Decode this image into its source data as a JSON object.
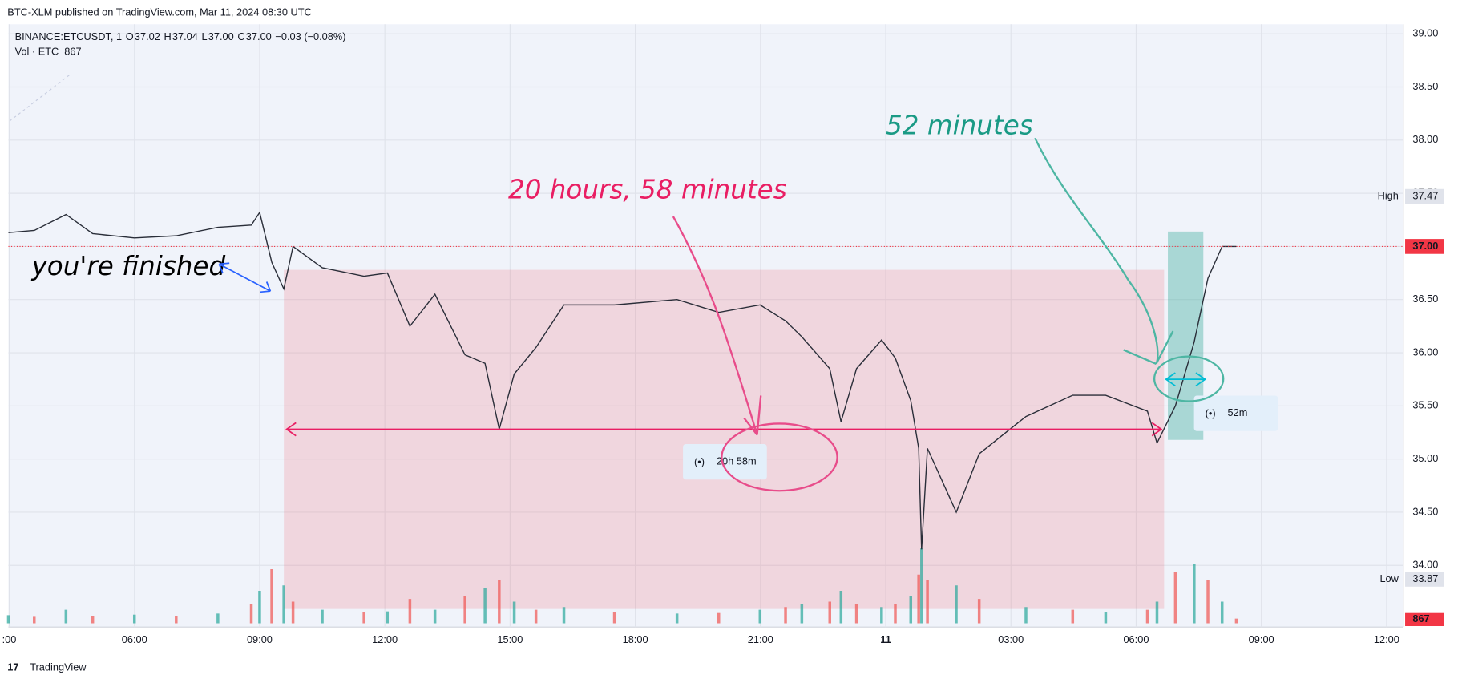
{
  "header": "BTC-XLM published on TradingView.com, Mar 11, 2024 08:30 UTC",
  "footer": "TradingView",
  "chart_data": {
    "type": "line",
    "legend": {
      "symbol": "BINANCE:ETCUSDT, 1",
      "items": [
        {
          "key": "O",
          "value": "37.02"
        },
        {
          "key": "H",
          "value": "37.04"
        },
        {
          "key": "L",
          "value": "37.00"
        },
        {
          "key": "C",
          "value": "37.00"
        }
      ],
      "change": "−0.03 (−0.08%)",
      "volume_label": "Vol · ETC",
      "volume_value": "867"
    },
    "x": [
      2.98,
      3.6,
      4.36,
      5.0,
      6.0,
      7.0,
      8.0,
      8.8,
      9.0,
      9.29,
      9.58,
      9.8,
      10.5,
      11.5,
      12.06,
      12.6,
      13.2,
      13.92,
      14.4,
      14.74,
      15.1,
      15.62,
      16.29,
      17.5,
      19.0,
      20.0,
      20.99,
      21.6,
      21.99,
      22.66,
      22.93,
      23.3,
      23.9,
      24.23,
      24.6,
      24.79,
      24.86,
      25.0,
      25.69,
      26.24,
      27.36,
      28.48,
      29.27,
      30.27,
      30.5,
      30.94,
      31.39,
      31.72,
      32.06,
      32.4
    ],
    "series": [
      {
        "color": "#2a2e39",
        "values": [
          37.13,
          37.15,
          37.3,
          37.12,
          37.08,
          37.1,
          37.18,
          37.2,
          37.32,
          36.85,
          36.6,
          37.0,
          36.8,
          36.72,
          36.75,
          36.25,
          36.55,
          35.98,
          35.9,
          35.28,
          35.8,
          36.05,
          36.45,
          36.45,
          36.5,
          36.38,
          36.45,
          36.3,
          36.15,
          35.85,
          35.35,
          35.85,
          36.12,
          35.95,
          35.55,
          35.1,
          34.15,
          35.1,
          34.5,
          35.05,
          35.4,
          35.6,
          35.6,
          35.45,
          35.15,
          35.5,
          36.1,
          36.7,
          37.0,
          37.0
        ]
      }
    ],
    "volume": [
      1500,
      1200,
      2500,
      1300,
      1600,
      1400,
      1800,
      3500,
      6000,
      10000,
      7000,
      4000,
      2500,
      2000,
      2200,
      4500,
      2500,
      5000,
      6500,
      8000,
      4000,
      2500,
      3000,
      2000,
      1800,
      1900,
      2500,
      3000,
      3500,
      4000,
      6000,
      3500,
      3000,
      3500,
      5000,
      9000,
      14000,
      8000,
      7000,
      4500,
      3000,
      2500,
      2000,
      2500,
      4000,
      9500,
      11000,
      8000,
      4000,
      867
    ],
    "volume_colors": [
      "#26a69a",
      "#ef5350"
    ],
    "xlim": [
      2.98,
      36.4
    ],
    "xticks": [
      {
        "value": 3,
        "label": ":00"
      },
      {
        "value": 6,
        "label": "06:00"
      },
      {
        "value": 9,
        "label": "09:00"
      },
      {
        "value": 12,
        "label": "12:00"
      },
      {
        "value": 15,
        "label": "15:00"
      },
      {
        "value": 18,
        "label": "18:00"
      },
      {
        "value": 21,
        "label": "21:00"
      },
      {
        "value": 24,
        "label": "11"
      },
      {
        "value": 27,
        "label": "03:00"
      },
      {
        "value": 30,
        "label": "06:00"
      },
      {
        "value": 33,
        "label": "09:00"
      },
      {
        "value": 36,
        "label": "12:00"
      }
    ],
    "ylim": [
      33.42,
      39.09
    ],
    "yticks": [
      {
        "value": 34,
        "label": "34.00"
      },
      {
        "value": 34.5,
        "label": "34.50"
      },
      {
        "value": 35,
        "label": "35.00"
      },
      {
        "value": 35.5,
        "label": "35.50"
      },
      {
        "value": 36,
        "label": "36.00"
      },
      {
        "value": 36.5,
        "label": "36.50"
      },
      {
        "value": 37,
        "label": "37.00"
      },
      {
        "value": 37.5,
        "label": "37.50"
      },
      {
        "value": 38,
        "label": "38.00"
      },
      {
        "value": 38.5,
        "label": "38.50"
      },
      {
        "value": 39,
        "label": "39.00"
      }
    ],
    "grid": true,
    "last_price": {
      "value": 37,
      "label": "37.00",
      "color": "#f23645"
    },
    "high": {
      "name": "High",
      "value": 37.47,
      "label": "37.47"
    },
    "low": {
      "name": "Low",
      "value": 33.87,
      "label": "33.87"
    },
    "ranges": [
      {
        "start": 9.58,
        "end": 30.67,
        "top": 36.78,
        "bottom": 33.59,
        "level": 35.28,
        "label": "20h 58m",
        "color": "#f23645"
      },
      {
        "start": 30.76,
        "end": 31.61,
        "top": 37.14,
        "bottom": 35.18,
        "level": 35.75,
        "label": "52m",
        "color": "#089981"
      }
    ],
    "annotations": [
      {
        "text": "you're finished",
        "color": "#000000"
      },
      {
        "text": "20 hours, 58 minutes",
        "color": "#e91e63"
      },
      {
        "text": "52 minutes",
        "color": "#1a9a85"
      }
    ]
  }
}
